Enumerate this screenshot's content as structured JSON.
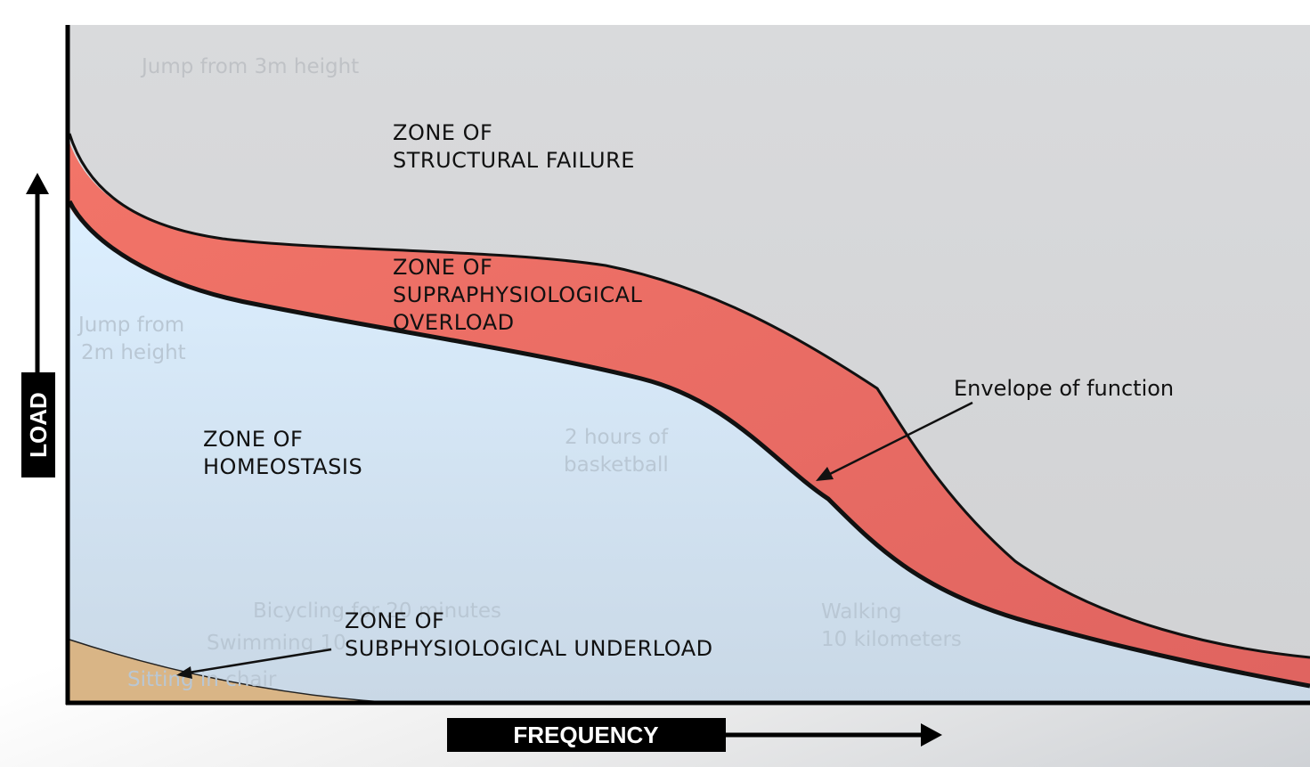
{
  "axes": {
    "y_label": "LOAD",
    "x_label": "FREQUENCY"
  },
  "zones": {
    "structural_failure": [
      "ZONE OF",
      "STRUCTURAL FAILURE"
    ],
    "supraphysiological": [
      "ZONE OF",
      "SUPRAPHYSIOLOGICAL",
      "OVERLOAD"
    ],
    "homeostasis": [
      "ZONE OF",
      "HOMEOSTASIS"
    ],
    "subphysiological": [
      "ZONE OF",
      "SUBPHYSIOLOGICAL UNDERLOAD"
    ]
  },
  "annotation": {
    "envelope": "Envelope of function"
  },
  "activities": {
    "jump_3m": "Jump from 3m height",
    "jump_2m": [
      "Jump from",
      "2m height"
    ],
    "basketball": [
      "2 hours of",
      "basketball"
    ],
    "walking": [
      "Walking",
      "10 kilometers"
    ],
    "bicycling": "Bicycling for 20 minutes",
    "swimming": "Swimming 10",
    "sitting": "Sitting in chair"
  },
  "colors": {
    "failure_zone": "#d4d5d7",
    "overload_zone": "#ee7468",
    "homeostasis_zone": "#d8ebf8",
    "underload_zone": "#d9b586",
    "axis": "#000000"
  }
}
